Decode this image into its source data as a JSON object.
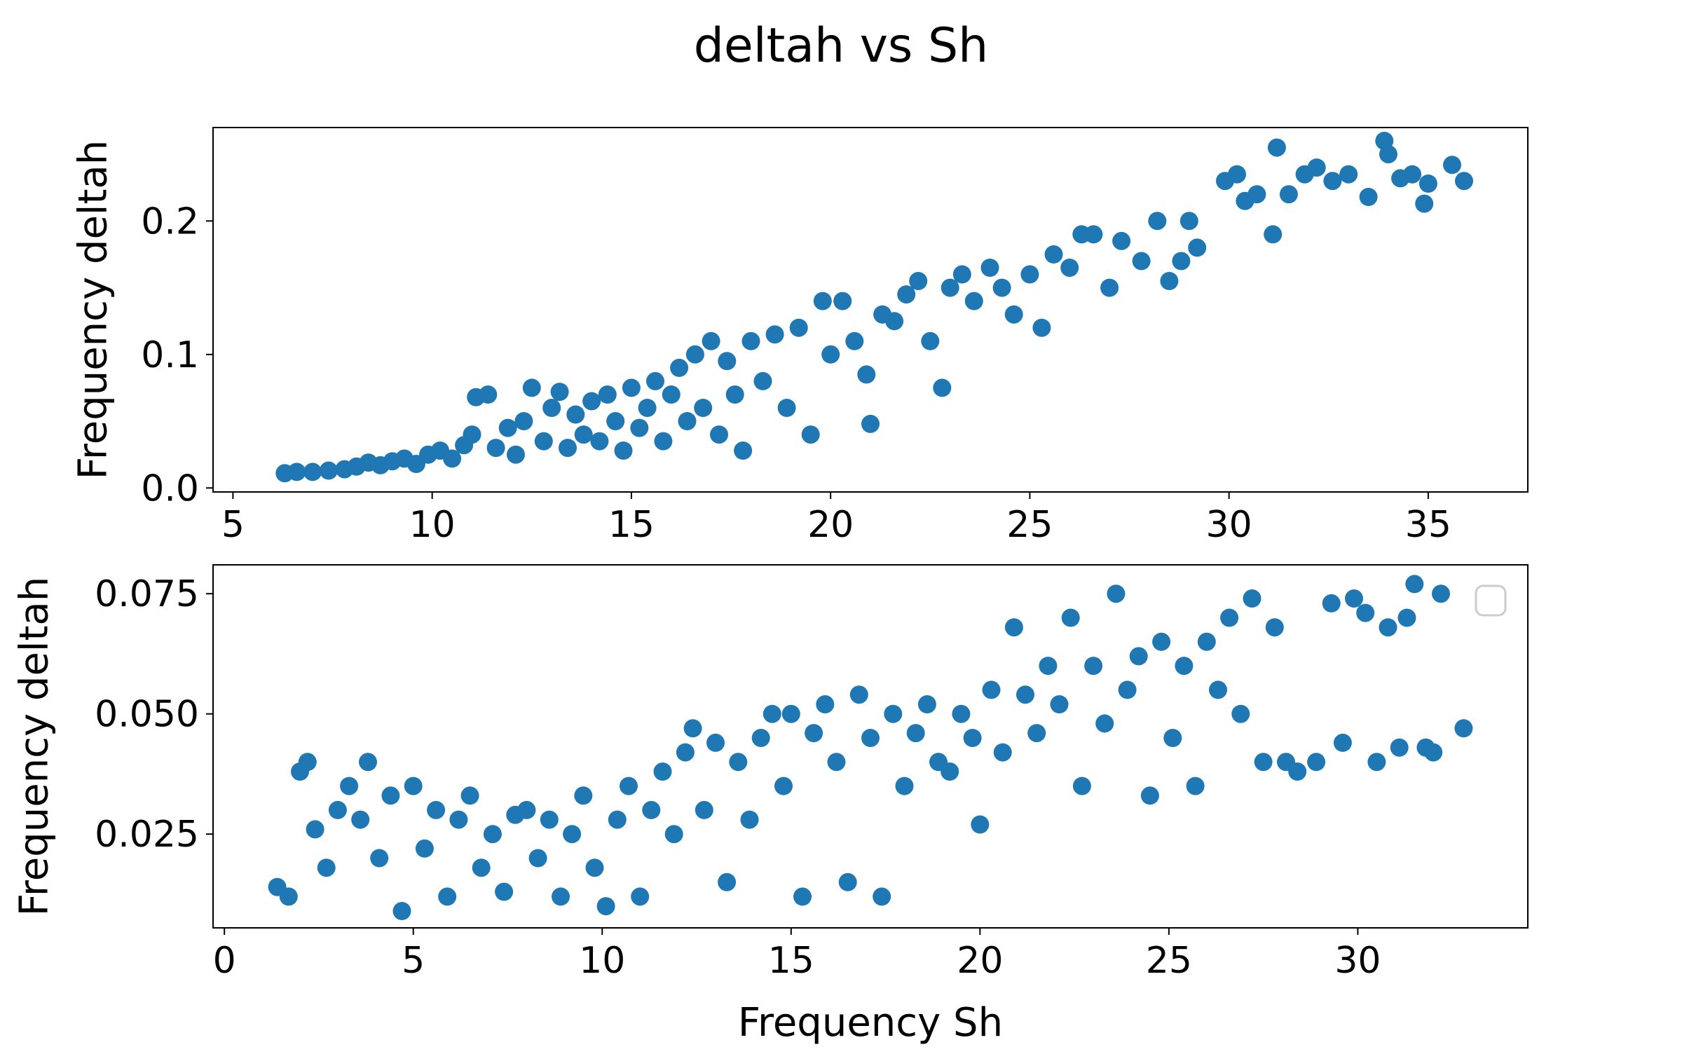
{
  "figure": {
    "title": "deltah vs Sh",
    "marker_color": "#1f77b4"
  },
  "chart_data": [
    {
      "type": "scatter",
      "title": "",
      "xlabel": "",
      "ylabel": "Frequency deltah",
      "xlim": [
        4.5,
        37.5
      ],
      "ylim": [
        -0.003,
        0.27
      ],
      "xticks": [
        5,
        10,
        15,
        20,
        25,
        30,
        35
      ],
      "xtick_labels": [
        "5",
        "10",
        "15",
        "20",
        "25",
        "30",
        "35"
      ],
      "yticks": [
        0.0,
        0.1,
        0.2
      ],
      "ytick_labels": [
        "0.0",
        "0.1",
        "0.2"
      ],
      "grid": false,
      "legend": null,
      "series": [
        {
          "color": "#1f77b4",
          "points": [
            [
              6.3,
              0.011
            ],
            [
              6.6,
              0.012
            ],
            [
              7.0,
              0.012
            ],
            [
              7.4,
              0.013
            ],
            [
              7.8,
              0.014
            ],
            [
              8.1,
              0.016
            ],
            [
              8.4,
              0.019
            ],
            [
              8.7,
              0.017
            ],
            [
              9.0,
              0.02
            ],
            [
              9.3,
              0.022
            ],
            [
              9.6,
              0.018
            ],
            [
              9.9,
              0.025
            ],
            [
              10.2,
              0.028
            ],
            [
              10.5,
              0.022
            ],
            [
              10.8,
              0.032
            ],
            [
              11.0,
              0.04
            ],
            [
              11.1,
              0.068
            ],
            [
              11.4,
              0.07
            ],
            [
              11.6,
              0.03
            ],
            [
              11.9,
              0.045
            ],
            [
              12.1,
              0.025
            ],
            [
              12.3,
              0.05
            ],
            [
              12.5,
              0.075
            ],
            [
              12.8,
              0.035
            ],
            [
              13.0,
              0.06
            ],
            [
              13.2,
              0.072
            ],
            [
              13.4,
              0.03
            ],
            [
              13.6,
              0.055
            ],
            [
              13.8,
              0.04
            ],
            [
              14.0,
              0.065
            ],
            [
              14.2,
              0.035
            ],
            [
              14.4,
              0.07
            ],
            [
              14.6,
              0.05
            ],
            [
              14.8,
              0.028
            ],
            [
              15.0,
              0.075
            ],
            [
              15.2,
              0.045
            ],
            [
              15.4,
              0.06
            ],
            [
              15.6,
              0.08
            ],
            [
              15.8,
              0.035
            ],
            [
              16.0,
              0.07
            ],
            [
              16.2,
              0.09
            ],
            [
              16.4,
              0.05
            ],
            [
              16.6,
              0.1
            ],
            [
              16.8,
              0.06
            ],
            [
              17.0,
              0.11
            ],
            [
              17.2,
              0.04
            ],
            [
              17.4,
              0.095
            ],
            [
              17.6,
              0.07
            ],
            [
              17.8,
              0.028
            ],
            [
              18.0,
              0.11
            ],
            [
              18.3,
              0.08
            ],
            [
              18.6,
              0.115
            ],
            [
              18.9,
              0.06
            ],
            [
              19.2,
              0.12
            ],
            [
              19.5,
              0.04
            ],
            [
              19.8,
              0.14
            ],
            [
              20.0,
              0.1
            ],
            [
              20.3,
              0.14
            ],
            [
              20.6,
              0.11
            ],
            [
              20.9,
              0.085
            ],
            [
              21.0,
              0.048
            ],
            [
              21.3,
              0.13
            ],
            [
              21.6,
              0.125
            ],
            [
              21.9,
              0.145
            ],
            [
              22.2,
              0.155
            ],
            [
              22.5,
              0.11
            ],
            [
              22.8,
              0.075
            ],
            [
              23.0,
              0.15
            ],
            [
              23.3,
              0.16
            ],
            [
              23.6,
              0.14
            ],
            [
              24.0,
              0.165
            ],
            [
              24.3,
              0.15
            ],
            [
              24.6,
              0.13
            ],
            [
              25.0,
              0.16
            ],
            [
              25.3,
              0.12
            ],
            [
              25.6,
              0.175
            ],
            [
              26.0,
              0.165
            ],
            [
              26.3,
              0.19
            ],
            [
              26.6,
              0.19
            ],
            [
              27.0,
              0.15
            ],
            [
              27.3,
              0.185
            ],
            [
              27.8,
              0.17
            ],
            [
              28.2,
              0.2
            ],
            [
              28.5,
              0.155
            ],
            [
              28.8,
              0.17
            ],
            [
              29.0,
              0.2
            ],
            [
              29.2,
              0.18
            ],
            [
              29.9,
              0.23
            ],
            [
              30.2,
              0.235
            ],
            [
              30.4,
              0.215
            ],
            [
              30.7,
              0.22
            ],
            [
              31.1,
              0.19
            ],
            [
              31.2,
              0.255
            ],
            [
              31.5,
              0.22
            ],
            [
              31.9,
              0.235
            ],
            [
              32.2,
              0.24
            ],
            [
              32.6,
              0.23
            ],
            [
              33.0,
              0.235
            ],
            [
              33.5,
              0.218
            ],
            [
              33.9,
              0.26
            ],
            [
              34.0,
              0.25
            ],
            [
              34.3,
              0.232
            ],
            [
              34.6,
              0.235
            ],
            [
              34.9,
              0.213
            ],
            [
              35.0,
              0.228
            ],
            [
              35.6,
              0.242
            ],
            [
              35.9,
              0.23
            ]
          ]
        }
      ]
    },
    {
      "type": "scatter",
      "title": "",
      "xlabel": "Frequency Sh",
      "ylabel": "Frequency deltah",
      "xlim": [
        -0.3,
        34.5
      ],
      "ylim": [
        0.0055,
        0.081
      ],
      "xticks": [
        0,
        5,
        10,
        15,
        20,
        25,
        30
      ],
      "xtick_labels": [
        "0",
        "5",
        "10",
        "15",
        "20",
        "25",
        "30"
      ],
      "yticks": [
        0.025,
        0.05,
        0.075
      ],
      "ytick_labels": [
        "0.025",
        "0.050",
        "0.075"
      ],
      "grid": false,
      "legend": "top-right (empty)",
      "series": [
        {
          "color": "#1f77b4",
          "points": [
            [
              1.4,
              0.014
            ],
            [
              1.7,
              0.012
            ],
            [
              2.0,
              0.038
            ],
            [
              2.2,
              0.04
            ],
            [
              2.4,
              0.026
            ],
            [
              2.7,
              0.018
            ],
            [
              3.0,
              0.03
            ],
            [
              3.3,
              0.035
            ],
            [
              3.6,
              0.028
            ],
            [
              3.8,
              0.04
            ],
            [
              4.1,
              0.02
            ],
            [
              4.4,
              0.033
            ],
            [
              4.7,
              0.009
            ],
            [
              5.0,
              0.035
            ],
            [
              5.3,
              0.022
            ],
            [
              5.6,
              0.03
            ],
            [
              5.9,
              0.012
            ],
            [
              6.2,
              0.028
            ],
            [
              6.5,
              0.033
            ],
            [
              6.8,
              0.018
            ],
            [
              7.1,
              0.025
            ],
            [
              7.4,
              0.013
            ],
            [
              7.7,
              0.029
            ],
            [
              8.0,
              0.03
            ],
            [
              8.3,
              0.02
            ],
            [
              8.6,
              0.028
            ],
            [
              8.9,
              0.012
            ],
            [
              9.2,
              0.025
            ],
            [
              9.5,
              0.033
            ],
            [
              9.8,
              0.018
            ],
            [
              10.1,
              0.01
            ],
            [
              10.4,
              0.028
            ],
            [
              10.7,
              0.035
            ],
            [
              11.0,
              0.012
            ],
            [
              11.3,
              0.03
            ],
            [
              11.6,
              0.038
            ],
            [
              11.9,
              0.025
            ],
            [
              12.2,
              0.042
            ],
            [
              12.4,
              0.047
            ],
            [
              12.7,
              0.03
            ],
            [
              13.0,
              0.044
            ],
            [
              13.3,
              0.015
            ],
            [
              13.6,
              0.04
            ],
            [
              13.9,
              0.028
            ],
            [
              14.2,
              0.045
            ],
            [
              14.5,
              0.05
            ],
            [
              14.8,
              0.035
            ],
            [
              15.0,
              0.05
            ],
            [
              15.3,
              0.012
            ],
            [
              15.6,
              0.046
            ],
            [
              15.9,
              0.052
            ],
            [
              16.2,
              0.04
            ],
            [
              16.5,
              0.015
            ],
            [
              16.8,
              0.054
            ],
            [
              17.1,
              0.045
            ],
            [
              17.4,
              0.012
            ],
            [
              17.7,
              0.05
            ],
            [
              18.0,
              0.035
            ],
            [
              18.3,
              0.046
            ],
            [
              18.6,
              0.052
            ],
            [
              18.9,
              0.04
            ],
            [
              19.2,
              0.038
            ],
            [
              19.5,
              0.05
            ],
            [
              19.8,
              0.045
            ],
            [
              20.0,
              0.027
            ],
            [
              20.3,
              0.055
            ],
            [
              20.6,
              0.042
            ],
            [
              20.9,
              0.068
            ],
            [
              21.2,
              0.054
            ],
            [
              21.5,
              0.046
            ],
            [
              21.8,
              0.06
            ],
            [
              22.1,
              0.052
            ],
            [
              22.4,
              0.07
            ],
            [
              22.7,
              0.035
            ],
            [
              23.0,
              0.06
            ],
            [
              23.3,
              0.048
            ],
            [
              23.6,
              0.075
            ],
            [
              23.9,
              0.055
            ],
            [
              24.2,
              0.062
            ],
            [
              24.5,
              0.033
            ],
            [
              24.8,
              0.065
            ],
            [
              25.1,
              0.045
            ],
            [
              25.4,
              0.06
            ],
            [
              25.7,
              0.035
            ],
            [
              26.0,
              0.065
            ],
            [
              26.3,
              0.055
            ],
            [
              26.6,
              0.07
            ],
            [
              26.9,
              0.05
            ],
            [
              27.2,
              0.074
            ],
            [
              27.5,
              0.04
            ],
            [
              27.8,
              0.068
            ],
            [
              28.1,
              0.04
            ],
            [
              28.4,
              0.038
            ],
            [
              28.9,
              0.04
            ],
            [
              29.3,
              0.073
            ],
            [
              29.6,
              0.044
            ],
            [
              29.9,
              0.074
            ],
            [
              30.2,
              0.071
            ],
            [
              30.5,
              0.04
            ],
            [
              30.8,
              0.068
            ],
            [
              31.1,
              0.043
            ],
            [
              31.3,
              0.07
            ],
            [
              31.5,
              0.077
            ],
            [
              31.8,
              0.043
            ],
            [
              32.0,
              0.042
            ],
            [
              32.2,
              0.075
            ],
            [
              32.8,
              0.047
            ]
          ]
        }
      ]
    }
  ]
}
